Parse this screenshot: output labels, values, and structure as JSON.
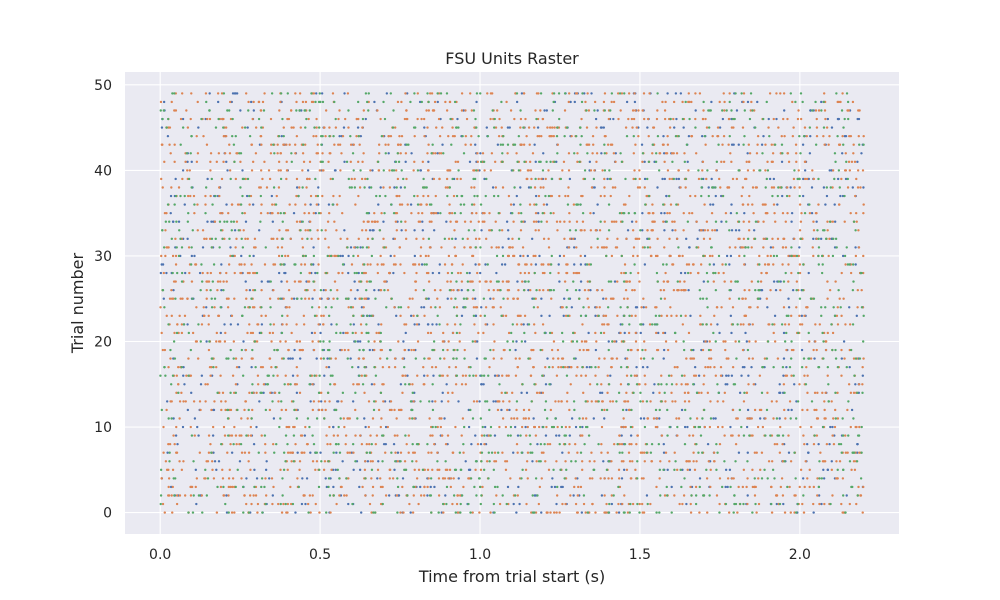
{
  "chart_data": {
    "type": "scatter",
    "subtype": "raster",
    "title": "FSU Units Raster",
    "xlabel": "Time from trial start (s)",
    "ylabel": "Trial number",
    "xlim": [
      -0.11,
      2.31
    ],
    "ylim": [
      -2.5,
      51.5
    ],
    "xticks": [
      0.0,
      0.5,
      1.0,
      1.5,
      2.0
    ],
    "xtick_labels": [
      "0.0",
      "0.5",
      "1.0",
      "1.5",
      "2.0"
    ],
    "yticks": [
      0,
      10,
      20,
      30,
      40,
      50
    ],
    "ytick_labels": [
      "0",
      "10",
      "20",
      "30",
      "40",
      "50"
    ],
    "grid": true,
    "background": "#EAEAF2",
    "trials": 50,
    "time_range": [
      0.0,
      2.2
    ],
    "series": [
      {
        "color": "#4C72B0",
        "spikes_per_trial_approx": 22
      },
      {
        "color": "#DD8452",
        "spikes_per_trial_approx": 60
      },
      {
        "color": "#55A868",
        "spikes_per_trial_approx": 30
      }
    ]
  }
}
